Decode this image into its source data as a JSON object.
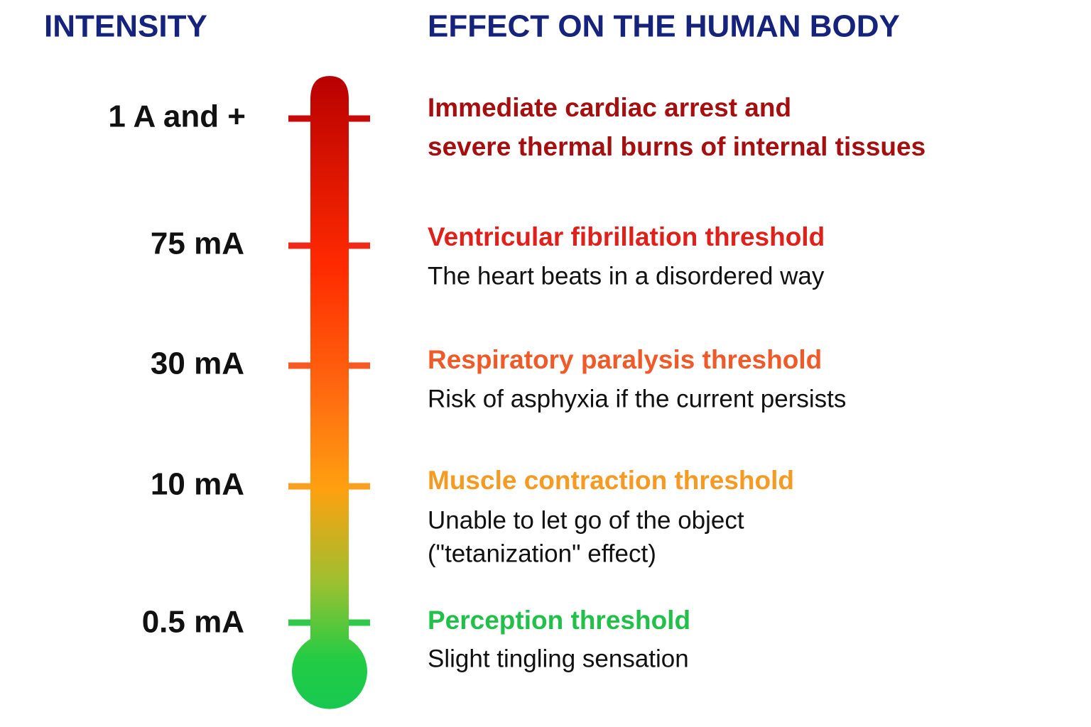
{
  "header": {
    "intensity": "INTENSITY",
    "effect": "EFFECT ON THE HUMAN BODY"
  },
  "levels": [
    {
      "intensity": "1 A and +",
      "title_lines": [
        "Immediate cardiac arrest and",
        "severe thermal burns of internal tissues"
      ]
    },
    {
      "intensity": "75 mA",
      "title_lines": [
        "Ventricular fibrillation threshold"
      ],
      "description_lines": [
        "The heart beats in a disordered way"
      ]
    },
    {
      "intensity": "30 mA",
      "title_lines": [
        "Respiratory paralysis threshold"
      ],
      "description_lines": [
        "Risk of asphyxia if the current persists"
      ]
    },
    {
      "intensity": "10 mA",
      "title_lines": [
        "Muscle contraction threshold"
      ],
      "description_lines": [
        "Unable to let go of the object",
        "(\"tetanization\" effect)"
      ]
    },
    {
      "intensity": "0.5 mA",
      "title_lines": [
        "Perception threshold"
      ],
      "description_lines": [
        "Slight tingling sensation"
      ]
    }
  ]
}
